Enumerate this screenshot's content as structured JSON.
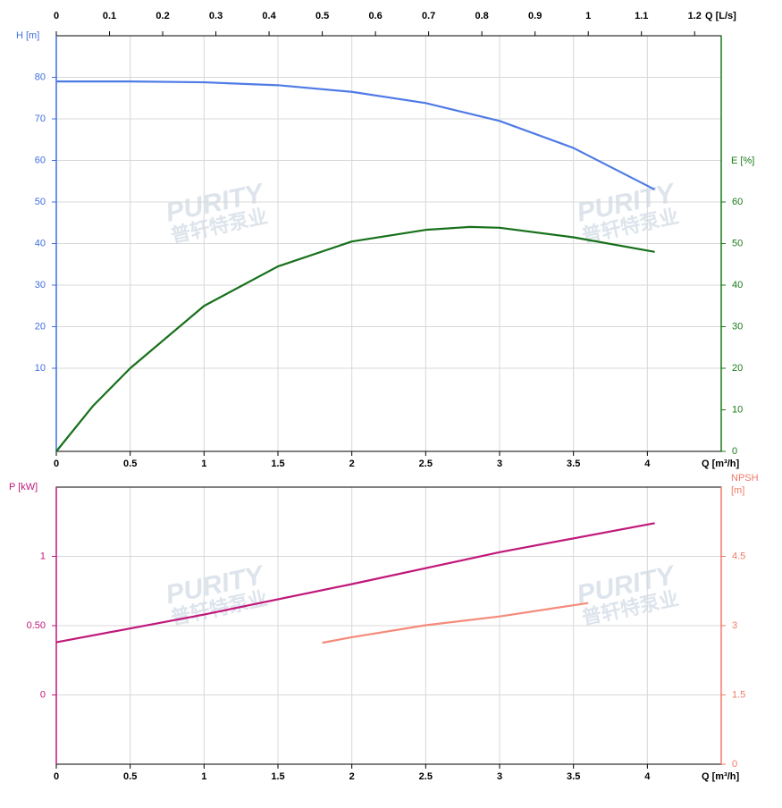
{
  "chart_data": [
    {
      "type": "line",
      "xlabel": "Q [m³/h]",
      "xlim": [
        0,
        4.5
      ],
      "xticks": [
        0,
        0.5,
        1,
        1.5,
        2,
        2.5,
        3,
        3.5,
        4
      ],
      "x2label": "Q [L/s]",
      "x2lim": [
        0,
        1.25
      ],
      "x2ticks": [
        0,
        0.1,
        0.2,
        0.3,
        0.4,
        0.5,
        0.6,
        0.7,
        0.8,
        0.9,
        1,
        1.1,
        1.2
      ],
      "ylabel": "H [m]",
      "ylim": [
        -10,
        90
      ],
      "yticks": [
        10,
        20,
        30,
        40,
        50,
        60,
        70,
        80
      ],
      "ycolor": "#3f6fe0",
      "y2label": [
        "E [%]"
      ],
      "y2lim": [
        0,
        100
      ],
      "y2ticks": [
        0,
        10,
        20,
        30,
        40,
        50,
        60
      ],
      "y2color": "#1a7a1a",
      "grid": true,
      "watermark": {
        "brand": "PURITY",
        "name": "普轩特泵业"
      },
      "series": [
        {
          "color": "#4f7be6",
          "x": [
            0,
            0.5,
            1,
            1.5,
            2,
            2.5,
            3,
            3.5,
            4.05
          ],
          "values": [
            79,
            79,
            78.8,
            78.1,
            76.5,
            73.8,
            69.5,
            63,
            53
          ]
        },
        {
          "color": "#16701a",
          "axis": "y2",
          "x": [
            0,
            0.25,
            0.5,
            1,
            1.5,
            2,
            2.5,
            2.8,
            3,
            3.5,
            4.05
          ],
          "values": [
            0,
            11,
            20,
            35,
            44.5,
            50.5,
            53.3,
            54,
            53.8,
            51.5,
            48
          ]
        }
      ]
    },
    {
      "type": "line",
      "xlabel": "Q [m³/h]",
      "xlim": [
        0,
        4.5
      ],
      "xticks": [
        0,
        0.5,
        1,
        1.5,
        2,
        2.5,
        3,
        3.5,
        4
      ],
      "ylabel": "P [kW]",
      "ylim": [
        -0.5,
        1.5
      ],
      "yticks": [
        0,
        {
          "value": 0.5,
          "label": "0.50"
        },
        1
      ],
      "ycolor": "#c0187a",
      "y2label": [
        "NPSH",
        "[m]"
      ],
      "y2lim": [
        0,
        6
      ],
      "y2ticks": [
        0,
        1.5,
        3,
        4.5
      ],
      "y2color": "#f07a6a",
      "grid": true,
      "watermark": {
        "brand": "PURITY",
        "name": "普轩特泵业"
      },
      "series": [
        {
          "color": "#c0187a",
          "x": [
            0,
            1,
            2,
            3,
            4.05
          ],
          "values": [
            0.38,
            0.58,
            0.8,
            1.03,
            1.24
          ]
        },
        {
          "color": "#f58a7a",
          "axis": "y2",
          "x": [
            1.8,
            2,
            2.5,
            3,
            3.6
          ],
          "values": [
            2.63,
            2.75,
            3.01,
            3.2,
            3.49
          ]
        }
      ]
    }
  ]
}
